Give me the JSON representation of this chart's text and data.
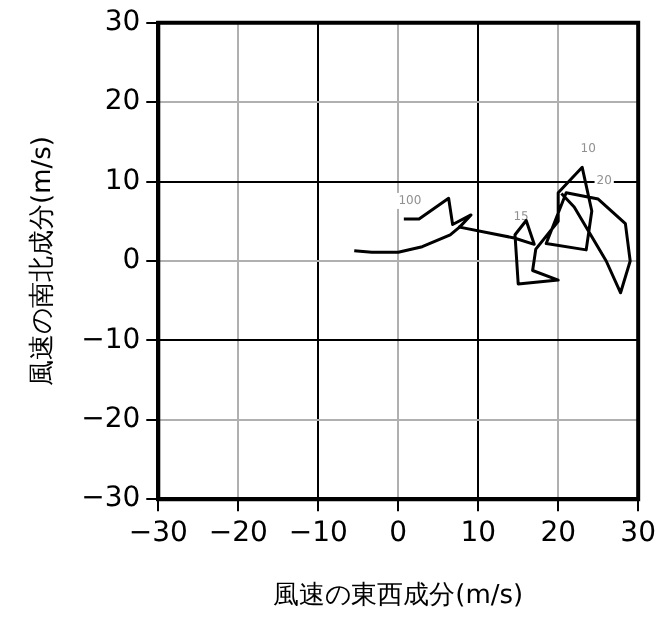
{
  "chart_data": {
    "type": "line",
    "xlabel": "風速の東西成分(m/s)",
    "ylabel": "風速の南北成分(m/s)",
    "xlim": [
      -30,
      30
    ],
    "ylim": [
      -30,
      30
    ],
    "xticks": [
      -30,
      -20,
      -10,
      0,
      10,
      20,
      30
    ],
    "yticks": [
      -30,
      -20,
      -10,
      0,
      10,
      20,
      30
    ],
    "grid": true,
    "marker": "none",
    "line_style": "solid",
    "annotations": [
      {
        "text": "100",
        "x": 0.7,
        "y": 5.3
      },
      {
        "text": "20",
        "x": 25,
        "y": 7.8
      },
      {
        "text": "10",
        "x": 23,
        "y": 11.8
      },
      {
        "text": "15",
        "x": 14.6,
        "y": 3.3
      }
    ],
    "series": [
      {
        "color": "#000000",
        "x": [
          0.7,
          2.6,
          6.3,
          6.8,
          9.1,
          7.7,
          6.5,
          3,
          0,
          -3.3,
          -5.5
        ],
        "values": [
          5.3,
          5.3,
          7.9,
          4.6,
          5.8,
          4.3,
          3.3,
          1.8,
          1.1,
          1.1,
          1.3
        ]
      },
      {
        "color": "#000000",
        "x": [
          7.5,
          14.5,
          17,
          16,
          14.6,
          15,
          20,
          16.8,
          17.2,
          20,
          20,
          23,
          24.2,
          23.5,
          18.5,
          21,
          25,
          28.4,
          29,
          27.8,
          26,
          22,
          20.4
        ],
        "values": [
          4.3,
          2.9,
          2.1,
          5.1,
          3.3,
          -2.9,
          -2.4,
          -1.2,
          1.5,
          5,
          8.6,
          11.8,
          6.3,
          1.4,
          2.2,
          8.6,
          7.8,
          4.7,
          0,
          -4,
          0,
          6.8,
          8.5
        ]
      }
    ]
  }
}
